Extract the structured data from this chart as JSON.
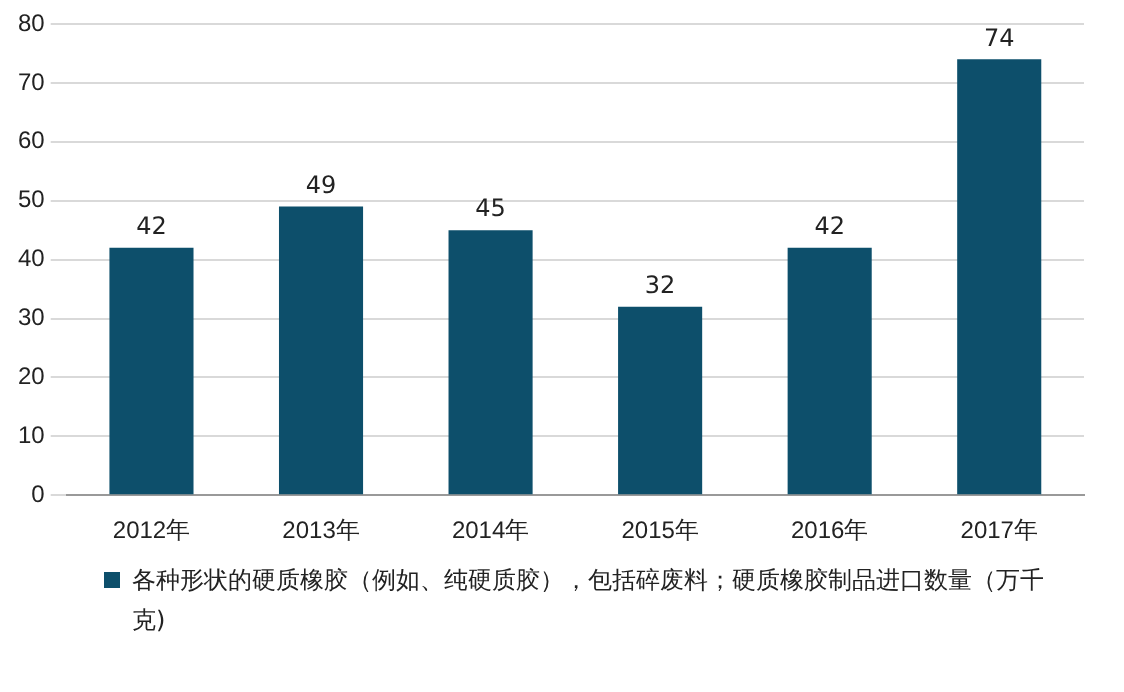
{
  "chart_data": {
    "type": "bar",
    "categories": [
      "2012年",
      "2013年",
      "2014年",
      "2015年",
      "2016年",
      "2017年"
    ],
    "series": [
      {
        "name": "各种形状的硬质橡胶（例如、纯硬质胶），包括碎废料；硬质橡胶制品进口数量（万千克)",
        "color": "#0d4f6b",
        "values": [
          42,
          49,
          45,
          32,
          42,
          74
        ]
      }
    ],
    "ylim": [
      0,
      80
    ],
    "yticks": [
      0,
      10,
      20,
      30,
      40,
      50,
      60,
      70,
      80
    ],
    "grid": "y",
    "legend": "bottom",
    "data_labels": true
  }
}
